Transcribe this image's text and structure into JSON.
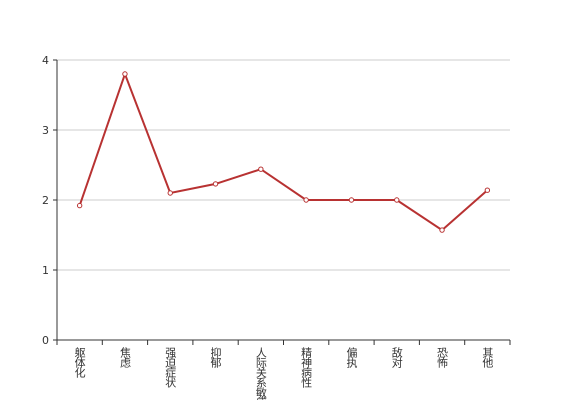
{
  "chart_data": {
    "type": "line",
    "categories": [
      "躯体化",
      "焦虑",
      "强迫症状",
      "抑郁",
      "人际关系敏感",
      "精神病性",
      "偏执",
      "敌对",
      "恐怖",
      "其他"
    ],
    "series": [
      {
        "color": "#b83232",
        "values": [
          1.92,
          3.8,
          2.1,
          2.23,
          2.44,
          2.0,
          2.0,
          2.0,
          1.57,
          2.14
        ]
      }
    ],
    "ylim": [
      0,
      4
    ],
    "yticks": [
      0,
      1,
      2,
      3,
      4
    ],
    "grid": true
  }
}
